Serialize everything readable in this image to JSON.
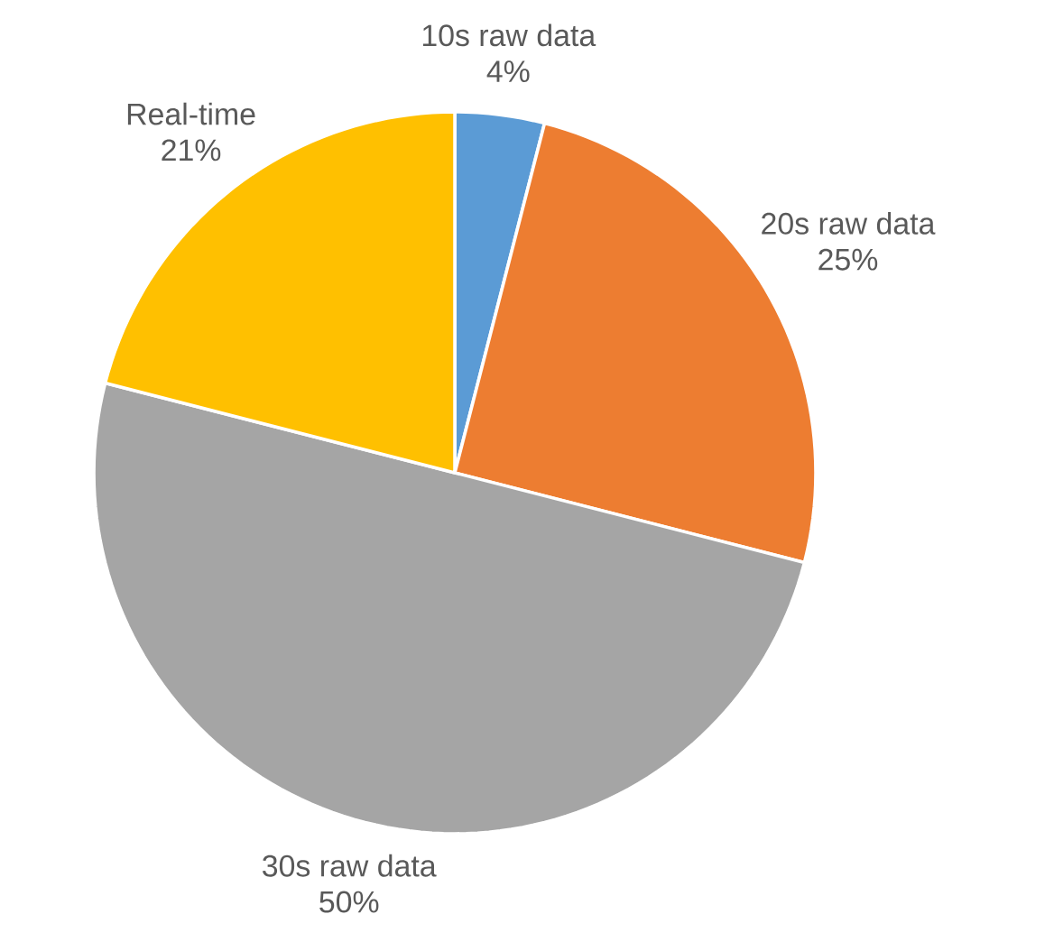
{
  "chart_data": {
    "type": "pie",
    "categories": [
      "10s raw data",
      "20s raw data",
      "30s raw data",
      "Real-time"
    ],
    "values": [
      4,
      25,
      50,
      21
    ],
    "colors": [
      "#5b9bd5",
      "#ed7d31",
      "#a5a5a5",
      "#ffc000"
    ],
    "value_labels": [
      "4%",
      "25%",
      "50%",
      "21%"
    ]
  }
}
